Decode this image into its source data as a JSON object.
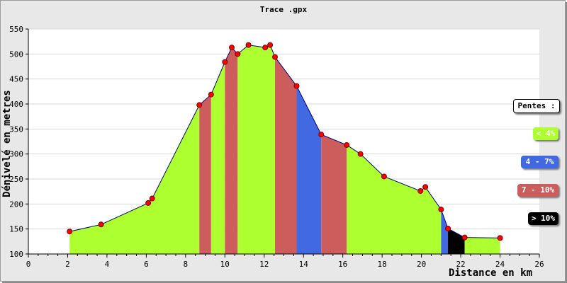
{
  "chart_data": {
    "type": "area",
    "title": "Trace .gpx",
    "xlabel": "Distance en km",
    "ylabel": "Dénivelé en metres",
    "xlim": [
      0,
      26
    ],
    "ylim": [
      100,
      550
    ],
    "x_ticks": [
      "0",
      "2",
      "4",
      "6",
      "8",
      "10",
      "12",
      "14",
      "16",
      "18",
      "20",
      "22",
      "24",
      "26"
    ],
    "y_ticks": [
      "100",
      "150",
      "200",
      "250",
      "300",
      "350",
      "400",
      "450",
      "500",
      "550"
    ],
    "grid": "horizontal",
    "legend_position": "right",
    "legend": {
      "title": "Pentes :",
      "items": [
        {
          "label": "< 4%",
          "color": "#adff2f"
        },
        {
          "label": "4 - 7%",
          "color": "#4169e1"
        },
        {
          "label": "7 - 10%",
          "color": "#cd5c5c"
        },
        {
          "label": "> 10%",
          "color": "#000000"
        }
      ]
    },
    "profile": [
      {
        "x": 2.1,
        "y": 145
      },
      {
        "x": 3.7,
        "y": 159
      },
      {
        "x": 6.1,
        "y": 202
      },
      {
        "x": 6.3,
        "y": 211
      },
      {
        "x": 8.7,
        "y": 398
      },
      {
        "x": 9.3,
        "y": 419
      },
      {
        "x": 10.0,
        "y": 484
      },
      {
        "x": 10.35,
        "y": 513
      },
      {
        "x": 10.65,
        "y": 500
      },
      {
        "x": 11.2,
        "y": 518
      },
      {
        "x": 12.05,
        "y": 513
      },
      {
        "x": 12.3,
        "y": 518
      },
      {
        "x": 12.55,
        "y": 494
      },
      {
        "x": 13.65,
        "y": 436
      },
      {
        "x": 14.9,
        "y": 339
      },
      {
        "x": 16.2,
        "y": 318
      },
      {
        "x": 16.9,
        "y": 300
      },
      {
        "x": 18.1,
        "y": 255
      },
      {
        "x": 19.95,
        "y": 226
      },
      {
        "x": 20.2,
        "y": 234
      },
      {
        "x": 21.0,
        "y": 189
      },
      {
        "x": 21.35,
        "y": 151
      },
      {
        "x": 22.2,
        "y": 133
      },
      {
        "x": 24.0,
        "y": 132
      }
    ],
    "slope_segments": [
      {
        "x0": 2.1,
        "x1": 8.7,
        "class": "< 4%"
      },
      {
        "x0": 8.7,
        "x1": 9.3,
        "class": "7 - 10%"
      },
      {
        "x0": 9.3,
        "x1": 10.0,
        "class": "< 4%"
      },
      {
        "x0": 10.0,
        "x1": 10.65,
        "class": "7 - 10%"
      },
      {
        "x0": 10.65,
        "x1": 12.55,
        "class": "< 4%"
      },
      {
        "x0": 12.55,
        "x1": 13.65,
        "class": "7 - 10%"
      },
      {
        "x0": 13.65,
        "x1": 14.9,
        "class": "4 - 7%"
      },
      {
        "x0": 14.9,
        "x1": 16.2,
        "class": "7 - 10%"
      },
      {
        "x0": 16.2,
        "x1": 21.0,
        "class": "< 4%"
      },
      {
        "x0": 21.0,
        "x1": 21.35,
        "class": "4 - 7%"
      },
      {
        "x0": 21.35,
        "x1": 22.2,
        "class": "> 10%"
      },
      {
        "x0": 22.2,
        "x1": 24.0,
        "class": "< 4%"
      }
    ]
  }
}
